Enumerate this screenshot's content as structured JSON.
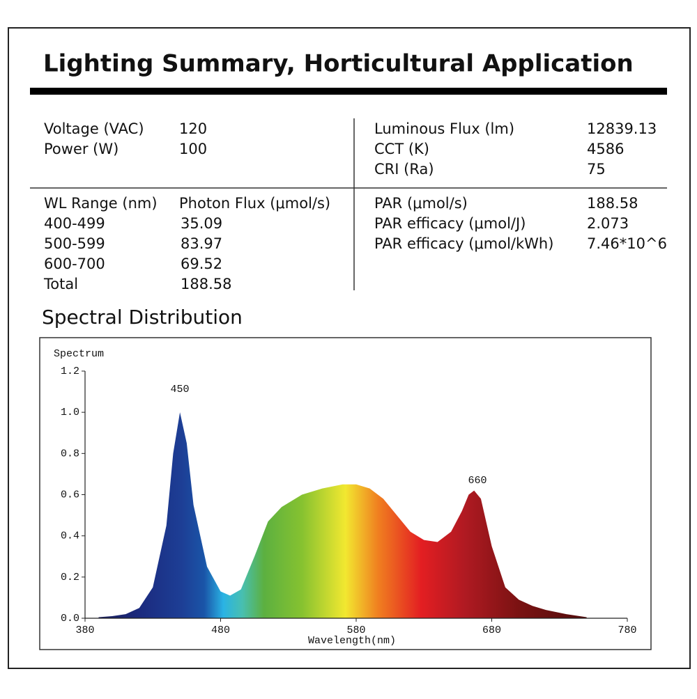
{
  "header": {
    "title": "Lighting Summary, Horticultural Application"
  },
  "specs_left": [
    [
      "Voltage (VAC)",
      "120"
    ],
    [
      "Power (W)",
      "100"
    ]
  ],
  "specs_right": [
    [
      "Luminous Flux (lm)",
      "12839.13"
    ],
    [
      "CCT (K)",
      "4586"
    ],
    [
      "CRI (Ra)",
      "75"
    ]
  ],
  "flux_table": {
    "header": [
      "WL Range (nm)",
      "Photon Flux (μmol/s)"
    ],
    "rows": [
      [
        "400-499",
        "35.09"
      ],
      [
        "500-599",
        "83.97"
      ],
      [
        "600-700",
        "69.52"
      ],
      [
        "Total",
        "188.58"
      ]
    ]
  },
  "par": [
    [
      "PAR (μmol/s)",
      "188.58"
    ],
    [
      "PAR efficacy (μmol/J)",
      "2.073"
    ],
    [
      "PAR efficacy (μmol/kWh)",
      "7.46*10^6"
    ]
  ],
  "section_title": "Spectral Distribution",
  "chart_data": {
    "type": "area",
    "y_label": "Spectrum",
    "x_label": "Wavelength(nm)",
    "annotations": [
      "450",
      "660"
    ],
    "x": [
      390,
      400,
      410,
      420,
      430,
      440,
      445,
      450,
      455,
      460,
      470,
      480,
      487,
      495,
      505,
      515,
      525,
      540,
      555,
      570,
      580,
      590,
      600,
      610,
      620,
      630,
      640,
      650,
      658,
      663,
      667,
      672,
      680,
      690,
      700,
      710,
      720,
      735,
      750
    ],
    "values": [
      0.005,
      0.01,
      0.02,
      0.05,
      0.15,
      0.45,
      0.8,
      1.0,
      0.85,
      0.55,
      0.25,
      0.13,
      0.11,
      0.14,
      0.3,
      0.47,
      0.54,
      0.6,
      0.63,
      0.65,
      0.65,
      0.63,
      0.58,
      0.5,
      0.42,
      0.38,
      0.37,
      0.42,
      0.52,
      0.6,
      0.62,
      0.58,
      0.35,
      0.15,
      0.09,
      0.06,
      0.04,
      0.02,
      0.005
    ],
    "xlim": [
      380,
      780
    ],
    "xticks": [
      380,
      480,
      580,
      680,
      780
    ],
    "ylim": [
      0,
      1.2
    ],
    "yticks": [
      {
        "value": 0,
        "label": "0.0"
      },
      0.2,
      0.4,
      0.6,
      0.8,
      {
        "value": 1,
        "label": "1.0"
      },
      1.2
    ]
  }
}
